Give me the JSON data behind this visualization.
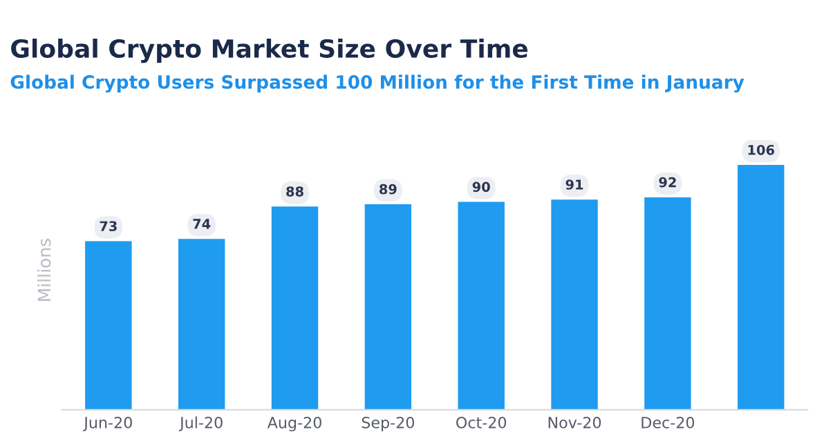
{
  "chart_data": {
    "type": "bar",
    "title": "Global Crypto Market Size Over Time",
    "subtitle": "Global Crypto Users Surpassed 100 Million for the First Time in January",
    "ylabel": "Millions",
    "categories": [
      "Jun-20",
      "Jul-20",
      "Aug-20",
      "Sep-20",
      "Oct-20",
      "Nov-20",
      "Dec-20",
      null
    ],
    "values": [
      73,
      74,
      88,
      89,
      90,
      91,
      92,
      106
    ],
    "color": "#1f9bf0",
    "data_labels": true,
    "tick_labels": "x",
    "grid": false,
    "legend": false
  }
}
